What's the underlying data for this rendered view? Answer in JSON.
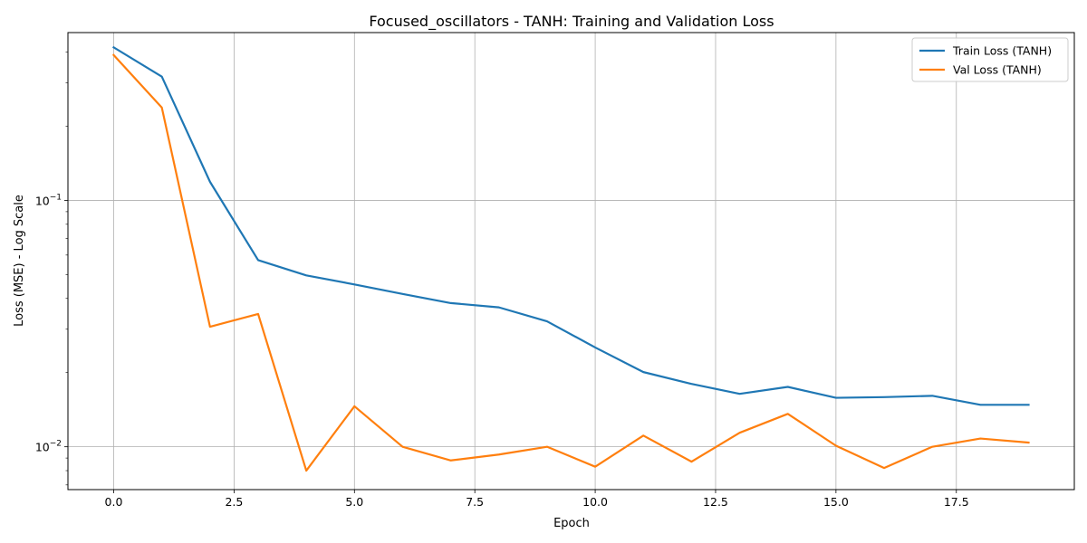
{
  "chart_data": {
    "type": "line",
    "title": "Focused_oscillators - TANH: Training and Validation Loss",
    "xlabel": "Epoch",
    "ylabel": "Loss (MSE) - Log Scale",
    "yscale": "log",
    "xlim": [
      -0.95,
      19.95
    ],
    "ylim": [
      0.0067,
      0.48
    ],
    "grid": true,
    "legend_position": "top-right",
    "x": [
      0,
      1,
      2,
      3,
      4,
      5,
      6,
      7,
      8,
      9,
      10,
      11,
      12,
      13,
      14,
      15,
      16,
      17,
      18,
      19
    ],
    "xticks": [
      0.0,
      2.5,
      5.0,
      7.5,
      10.0,
      12.5,
      15.0,
      17.5
    ],
    "xtick_labels": [
      "0.0",
      "2.5",
      "5.0",
      "7.5",
      "10.0",
      "12.5",
      "15.0",
      "17.5"
    ],
    "yticks": [
      0.01,
      0.1
    ],
    "ytick_labels": [
      {
        "base": "10",
        "exp": "−2"
      },
      {
        "base": "10",
        "exp": "−1"
      }
    ],
    "series": [
      {
        "name": "Train Loss (TANH)",
        "color": "#1f77b4",
        "values": [
          0.418,
          0.318,
          0.119,
          0.0572,
          0.0496,
          0.0456,
          0.0417,
          0.0383,
          0.0368,
          0.0323,
          0.0253,
          0.0201,
          0.018,
          0.0164,
          0.0175,
          0.0158,
          0.0159,
          0.0161,
          0.0148,
          0.0148
        ]
      },
      {
        "name": "Val Loss (TANH)",
        "color": "#ff7f0e",
        "values": [
          0.389,
          0.238,
          0.0307,
          0.0346,
          0.008,
          0.0146,
          0.01,
          0.0088,
          0.0093,
          0.01,
          0.0083,
          0.0111,
          0.0087,
          0.0114,
          0.0136,
          0.0101,
          0.0082,
          0.01,
          0.0108,
          0.0104
        ]
      }
    ]
  }
}
